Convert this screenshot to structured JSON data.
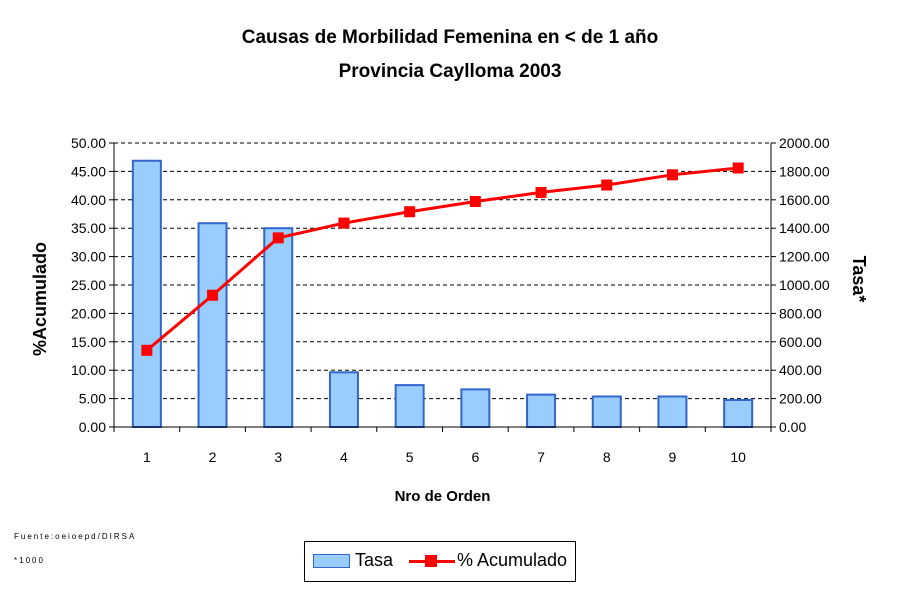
{
  "title": "Causas de Morbilidad Femenina en < de 1 año",
  "subtitle": "Provincia Caylloma 2003",
  "source_note": "Fuente:oeioepd/DIRSA",
  "footnote": "*1000",
  "chart_data": {
    "type": "bar",
    "categories": [
      "1",
      "2",
      "3",
      "4",
      "5",
      "6",
      "7",
      "8",
      "9",
      "10"
    ],
    "xlabel": "Nro de Orden",
    "ylabel_left": "%Acumulado",
    "ylabel_right": "Tasa*",
    "ylim_left": [
      0,
      50
    ],
    "ylim_right": [
      0,
      2000
    ],
    "yticks_left": [
      "0.00",
      "5.00",
      "10.00",
      "15.00",
      "20.00",
      "25.00",
      "30.00",
      "35.00",
      "40.00",
      "45.00",
      "50.00"
    ],
    "yticks_right": [
      "0.00",
      "200.00",
      "400.00",
      "600.00",
      "800.00",
      "1000.00",
      "1200.00",
      "1400.00",
      "1600.00",
      "1800.00",
      "2000.00"
    ],
    "grid": true,
    "legend_position": "bottom",
    "series": [
      {
        "name": "Tasa",
        "type": "bar",
        "axis": "right",
        "color": "#99ccff",
        "border": "#3366cc",
        "values": [
          1875,
          1435,
          1400,
          385,
          295,
          265,
          228,
          215,
          215,
          190
        ]
      },
      {
        "name": "% Acumulado",
        "type": "line",
        "axis": "left",
        "color": "#ff0000",
        "values": [
          13.5,
          23.2,
          33.3,
          35.9,
          37.9,
          39.7,
          41.3,
          42.6,
          44.4,
          45.6
        ]
      }
    ]
  }
}
